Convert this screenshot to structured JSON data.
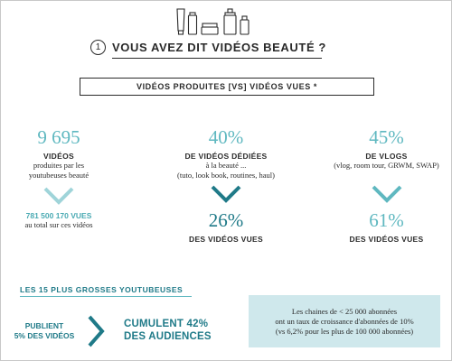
{
  "header": {
    "number": "1",
    "title": "VOUS AVEZ DIT VIDÉOS BEAUTÉ ?"
  },
  "subtitle": "VIDÉOS PRODUITES [VS] VIDÉOS VUES *",
  "columns": [
    {
      "top_value": "9 695",
      "top_label": "VIDÉOS",
      "top_desc": [
        "produites par les",
        "youtubeuses beauté"
      ],
      "bottom_value": "781 500 170 VUES",
      "bottom_desc": "au total sur ces vidéos"
    },
    {
      "top_value": "40%",
      "top_label": "DE VIDÉOS DÉDIÉES",
      "top_desc": [
        "à la beauté ...",
        "(tuto, look book, routines, haul)"
      ],
      "bottom_value": "26%",
      "bottom_label": "DES VIDÉOS VUES"
    },
    {
      "top_value": "45%",
      "top_label": "DE VLOGS",
      "top_desc": [
        "(vlog, room tour, GRWM, SWAP)"
      ],
      "bottom_value": "61%",
      "bottom_label": "DES VIDÉOS VUES"
    }
  ],
  "top15": {
    "title": "LES 15 PLUS GROSSES YOUTUBEUSES",
    "left": [
      "PUBLIENT",
      "5% DES VIDÉOS"
    ],
    "right": [
      "CUMULENT 42%",
      "DES AUDIENCES"
    ]
  },
  "info_box": {
    "lines": [
      "Les chaines de  < 25 000 abonnées",
      "ont un taux de croissance d'abonnées de 10%",
      "(vs 6,2% pour les plus de 100 000 abonnées)"
    ]
  },
  "colors": {
    "teal_light": "#5fb8c0",
    "teal_dark": "#1f7a88",
    "box_bg": "#cfe8ec",
    "text": "#2a2a2a"
  },
  "icons": [
    "cosmetic-products-icon",
    "chevron-down-icon",
    "chevron-right-icon"
  ]
}
